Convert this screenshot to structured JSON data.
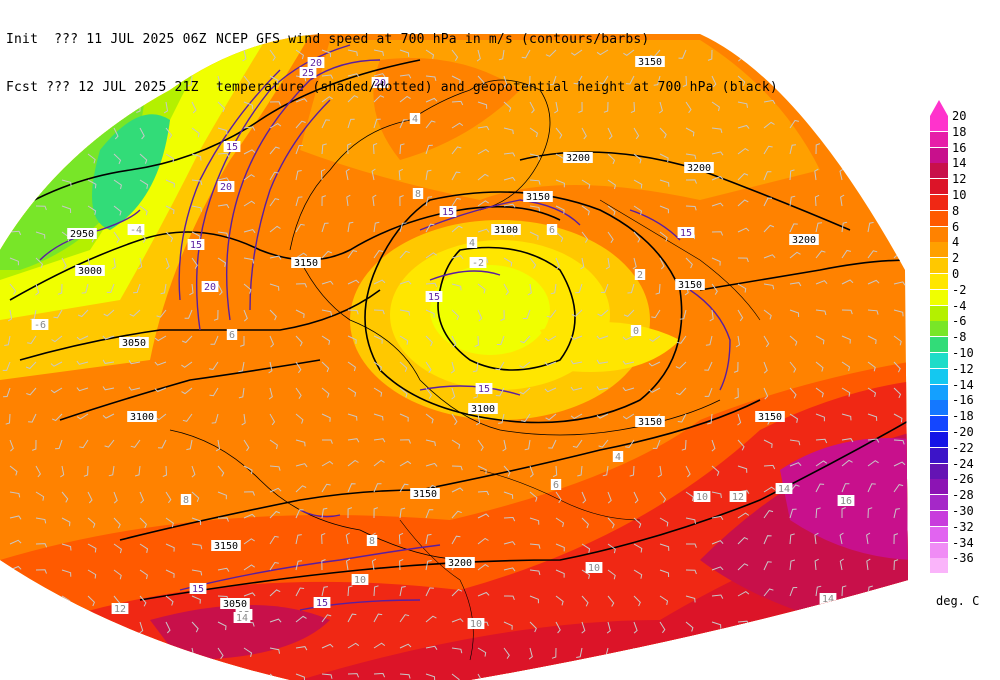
{
  "header": {
    "line1_left": "Init  ??? 11 JUL 2025 06Z",
    "line1_right": "NCEP GFS wind speed at 700 hPa in m/s (contours/barbs)",
    "line2_left": "Fcst ??? 12 JUL 2025 21Z",
    "line2_right": "temperature (shaded/dotted) and geopotential height at 700 hPa (black)"
  },
  "colorbar": {
    "units": "deg. C",
    "entries": [
      {
        "label": "20",
        "color": "#ff33cc"
      },
      {
        "label": "18",
        "color": "#e61ea8"
      },
      {
        "label": "16",
        "color": "#c8108c"
      },
      {
        "label": "14",
        "color": "#c8104a"
      },
      {
        "label": "12",
        "color": "#dc1428"
      },
      {
        "label": "10",
        "color": "#f02814"
      },
      {
        "label": "8",
        "color": "#ff5a00"
      },
      {
        "label": "6",
        "color": "#ff8200"
      },
      {
        "label": "4",
        "color": "#ffa000"
      },
      {
        "label": "2",
        "color": "#ffc800"
      },
      {
        "label": "0",
        "color": "#ffe600"
      },
      {
        "label": "-2",
        "color": "#f0ff00"
      },
      {
        "label": "-4",
        "color": "#b4f000"
      },
      {
        "label": "-6",
        "color": "#78e628"
      },
      {
        "label": "-8",
        "color": "#32dc78"
      },
      {
        "label": "-10",
        "color": "#1edcc8"
      },
      {
        "label": "-12",
        "color": "#14c8f0"
      },
      {
        "label": "-14",
        "color": "#14a0ff"
      },
      {
        "label": "-16",
        "color": "#1478ff"
      },
      {
        "label": "-18",
        "color": "#1446ff"
      },
      {
        "label": "-20",
        "color": "#1414e6"
      },
      {
        "label": "-22",
        "color": "#3c14c8"
      },
      {
        "label": "-24",
        "color": "#6414b4"
      },
      {
        "label": "-26",
        "color": "#8c14b4"
      },
      {
        "label": "-28",
        "color": "#a528c8"
      },
      {
        "label": "-30",
        "color": "#c83cdc"
      },
      {
        "label": "-32",
        "color": "#e164f0"
      },
      {
        "label": "-34",
        "color": "#f08cf5"
      },
      {
        "label": "-36",
        "color": "#fab4fa"
      }
    ]
  },
  "map": {
    "height_labels": [
      "2950",
      "3000",
      "3050",
      "3100",
      "3150",
      "3150",
      "3150",
      "3150",
      "3150",
      "3150",
      "3150",
      "3200",
      "3200",
      "3200",
      "3200",
      "3100",
      "3100",
      "3050",
      "3150"
    ],
    "wind_labels": [
      "20",
      "25",
      "20",
      "15",
      "20",
      "15",
      "20",
      "15",
      "15",
      "15",
      "15",
      "15",
      "15"
    ],
    "temp_labels": [
      "4",
      "8",
      "6",
      "4",
      "2",
      "0",
      "-2",
      "-4",
      "-6",
      "6",
      "8",
      "10",
      "12",
      "14",
      "16",
      "10",
      "12",
      "14",
      "10",
      "12",
      "14",
      "8",
      "6",
      "4",
      "10"
    ],
    "colors": {
      "jet_contour": "#5a1ea0",
      "height_contour": "#000000",
      "barb": "#c8c8c8"
    }
  }
}
